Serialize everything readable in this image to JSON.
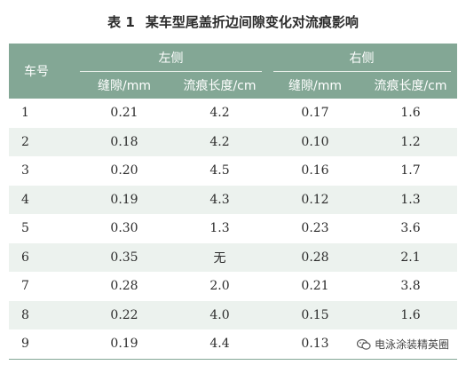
{
  "caption": {
    "label": "表 1",
    "title": "某车型尾盖折边间隙变化对流痕影响"
  },
  "header": {
    "car_col": "车号",
    "left_group": "左侧",
    "right_group": "右侧",
    "sub": [
      "缝隙/mm",
      "流痕长度/cm",
      "缝隙/mm",
      "流痕长度/cm"
    ]
  },
  "rows": [
    [
      "1",
      "0.21",
      "4.2",
      "0.17",
      "1.6"
    ],
    [
      "2",
      "0.18",
      "4.2",
      "0.10",
      "1.2"
    ],
    [
      "3",
      "0.20",
      "4.5",
      "0.16",
      "1.7"
    ],
    [
      "4",
      "0.19",
      "4.3",
      "0.12",
      "1.3"
    ],
    [
      "5",
      "0.30",
      "1.3",
      "0.23",
      "3.6"
    ],
    [
      "6",
      "0.35",
      "无",
      "0.28",
      "2.1"
    ],
    [
      "7",
      "0.28",
      "2.0",
      "0.21",
      "3.8"
    ],
    [
      "8",
      "0.22",
      "4.0",
      "0.15",
      "1.6"
    ],
    [
      "9",
      "0.19",
      "4.4",
      "0.13",
      ""
    ]
  ],
  "watermark": {
    "text": "电泳涂装精英圈",
    "icon": "wechat-icon"
  },
  "colors": {
    "header_bg": "#83a795",
    "alt_row_bg": "#ecf2ee"
  }
}
